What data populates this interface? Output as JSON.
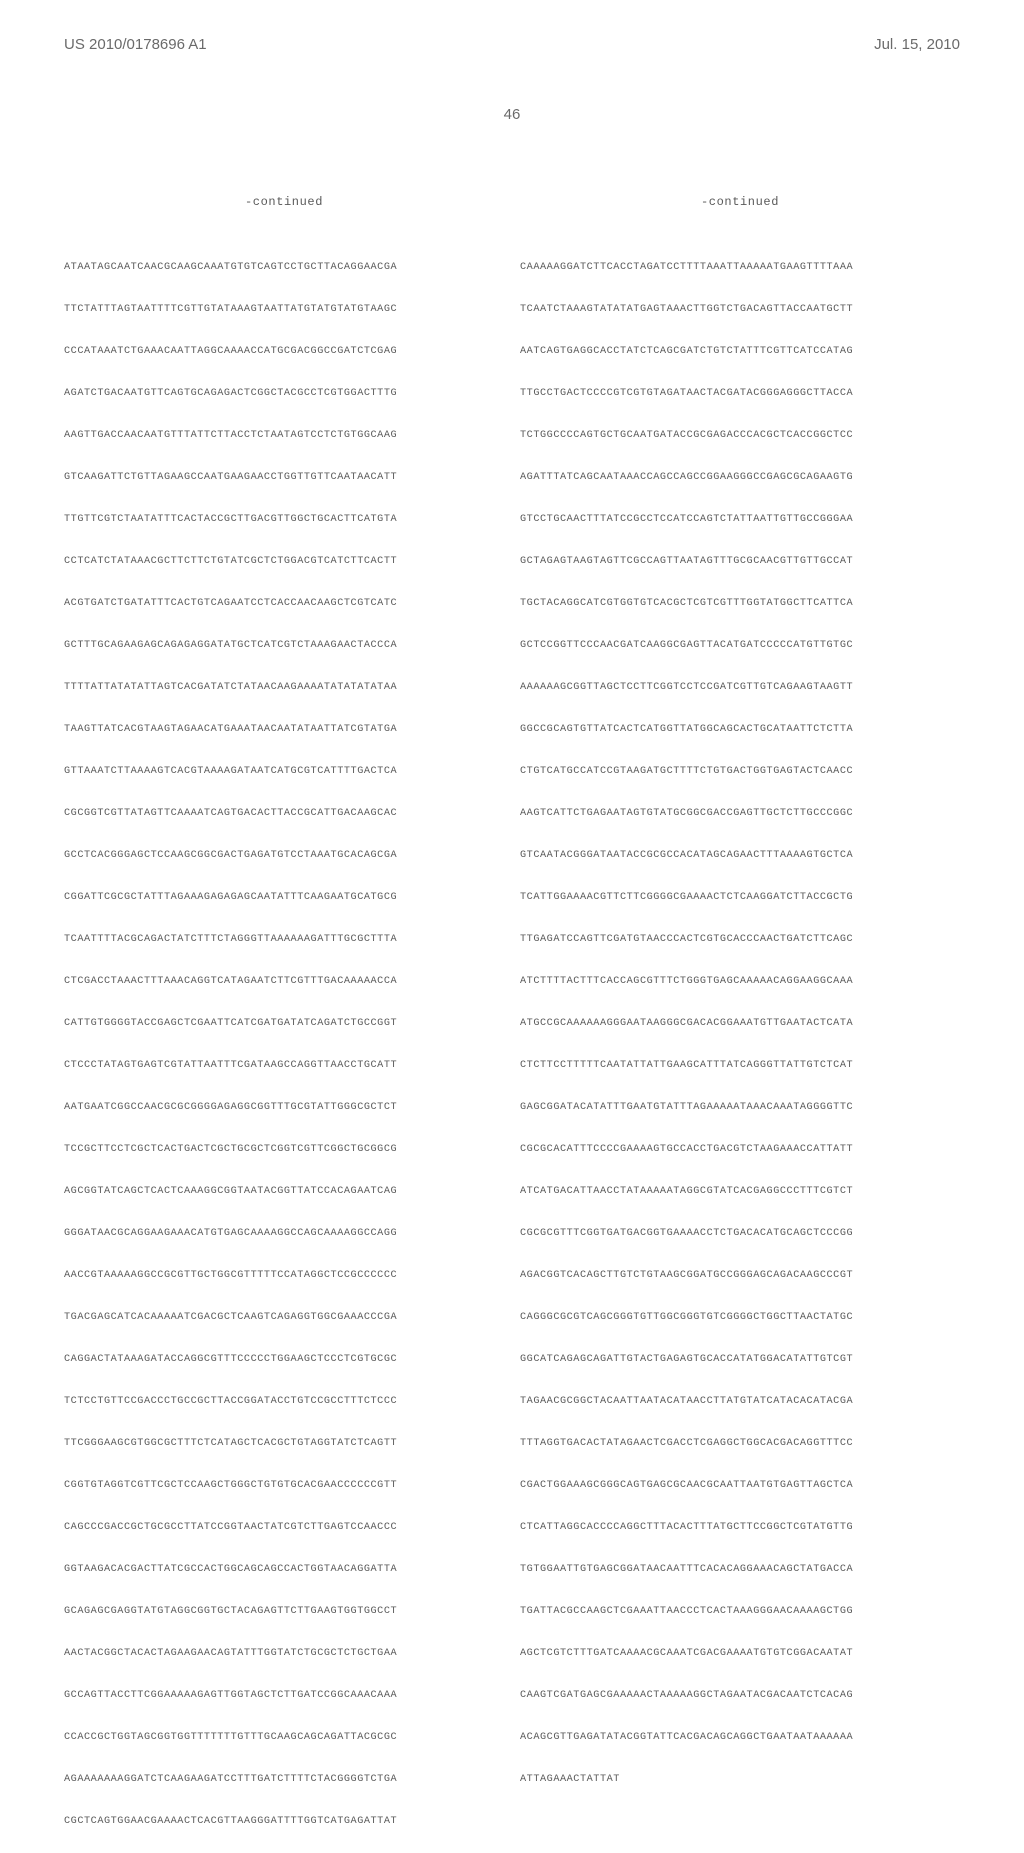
{
  "header": {
    "pub_number": "US 2010/0178696 A1",
    "pub_date": "Jul. 15, 2010"
  },
  "page_number": "46",
  "continued_label": "-continued",
  "left_column": [
    "ATAATAGCAATCAACGCAAGCAAATGTGTCAGTCCTGCTTACAGGAACGA",
    "TTCTATTTAGTAATTTTCGTTGTATAAAGTAATTATGTATGTATGTAAGC",
    "CCCATAAATCTGAAACAATTAGGCAAAACCATGCGACGGCCGATCTCGAG",
    "AGATCTGACAATGTTCAGTGCAGAGACTCGGCTACGCCTCGTGGACTTTG",
    "AAGTTGACCAACAATGTTTATTCTTACCTCTAATAGTCCTCTGTGGCAAG",
    "GTCAAGATTCTGTTAGAAGCCAATGAAGAACCTGGTTGTTCAATAACATT",
    "TTGTTCGTCTAATATTTCACTACCGCTTGACGTTGGCTGCACTTCATGTA",
    "CCTCATCTATAAACGCTTCTTCTGTATCGCTCTGGACGTCATCTTCACTT",
    "ACGTGATCTGATATTTCACTGTCAGAATCCTCACCAACAAGCTCGTCATC",
    "GCTTTGCAGAAGAGCAGAGAGGATATGCTCATCGTCTAAAGAACTACCCA",
    "TTTTATTATATATTAGTCACGATATCTATAACAAGAAAATATATATATAA",
    "TAAGTTATCACGTAAGTAGAACATGAAATAACAATATAATTATCGTATGA",
    "GTTAAATCTTAAAAGTCACGTAAAAGATAATCATGCGTCATTTTGACTCA",
    "CGCGGTCGTTATAGTTCAAAATCAGTGACACTTACCGCATTGACAAGCAC",
    "GCCTCACGGGAGCTCCAAGCGGCGACTGAGATGTCCTAAATGCACAGCGA",
    "CGGATTCGCGCTATTTAGAAAGAGAGAGCAATATTTCAAGAATGCATGCG",
    "TCAATTTTACGCAGACTATCTTTCTAGGGTTAAAAAAGATTTGCGCTTTA",
    "CTCGACCTAAACTTTAAACAGGTCATAGAATCTTCGTTTGACAAAAACCA",
    "CATTGTGGGGTACCGAGCTCGAATTCATCGATGATATCAGATCTGCCGGT",
    "CTCCCTATAGTGAGTCGTATTAATTTCGATAAGCCAGGTTAACCTGCATT",
    "AATGAATCGGCCAACGCGCGGGGAGAGGCGGTTTGCGTATTGGGCGCTCT",
    "TCCGCTTCCTCGCTCACTGACTCGCTGCGCTCGGTCGTTCGGCTGCGGCG",
    "AGCGGTATCAGCTCACTCAAAGGCGGTAATACGGTTATCCACAGAATCAG",
    "GGGATAACGCAGGAAGAAACATGTGAGCAAAAGGCCAGCAAAAGGCCAGG",
    "AACCGTAAAAAGGCCGCGTTGCTGGCGTTTTTCCATAGGCTCCGCCCCCC",
    "TGACGAGCATCACAAAAATCGACGCTCAAGTCAGAGGTGGCGAAACCCGA",
    "CAGGACTATAAAGATACCAGGCGTTTCCCCCTGGAAGCTCCCTCGTGCGC",
    "TCTCCTGTTCCGACCCTGCCGCTTACCGGATACCTGTCCGCCTTTCTCCC",
    "TTCGGGAAGCGTGGCGCTTTCTCATAGCTCACGCTGTAGGTATCTCAGTT",
    "CGGTGTAGGTCGTTCGCTCCAAGCTGGGCTGTGTGCACGAACCCCCCGTT",
    "CAGCCCGACCGCTGCGCCTTATCCGGTAACTATCGTCTTGAGTCCAACCC",
    "GGTAAGACACGACTTATCGCCACTGGCAGCAGCCACTGGTAACAGGATTA",
    "GCAGAGCGAGGTATGTAGGCGGTGCTACAGAGTTCTTGAAGTGGTGGCCT",
    "AACTACGGCTACACTAGAAGAACAGTATTTGGTATCTGCGCTCTGCTGAA",
    "GCCAGTTACCTTCGGAAAAAGAGTTGGTAGCTCTTGATCCGGCAAACAAA",
    "CCACCGCTGGTAGCGGTGGTTTTTTTGTTTGCAAGCAGCAGATTACGCGC",
    "AGAAAAAAAGGATCTCAAGAAGATCCTTTGATCTTTTCTACGGGGTCTGA",
    "CGCTCAGTGGAACGAAAACTCACGTTAAGGGATTTTGGTCATGAGATTAT"
  ],
  "right_column": [
    "CAAAAAGGATCTTCACCTAGATCCTTTTAAATTAAAAATGAAGTTTTAAA",
    "TCAATCTAAAGTATATATGAGTAAACTTGGTCTGACAGTTACCAATGCTT",
    "AATCAGTGAGGCACCTATCTCAGCGATCTGTCTATTTCGTTCATCCATAG",
    "TTGCCTGACTCCCCGTCGTGTAGATAACTACGATACGGGAGGGCTTACCA",
    "TCTGGCCCCAGTGCTGCAATGATACCGCGAGACCCACGCTCACCGGCTCC",
    "AGATTTATCAGCAATAAACCAGCCAGCCGGAAGGGCCGAGCGCAGAAGTG",
    "GTCCTGCAACTTTATCCGCCTCCATCCAGTCTATTAATTGTTGCCGGGAA",
    "GCTAGAGTAAGTAGTTCGCCAGTTAATAGTTTGCGCAACGTTGTTGCCAT",
    "TGCTACAGGCATCGTGGTGTCACGCTCGTCGTTTGGTATGGCTTCATTCA",
    "GCTCCGGTTCCCAACGATCAAGGCGAGTTACATGATCCCCCATGTTGTGC",
    "AAAAAAGCGGTTAGCTCCTTCGGTCCTCCGATCGTTGTCAGAAGTAAGTT",
    "GGCCGCAGTGTTATCACTCATGGTTATGGCAGCACTGCATAATTCTCTTA",
    "CTGTCATGCCATCCGTAAGATGCTTTTCTGTGACTGGTGAGTACTCAACC",
    "AAGTCATTCTGAGAATAGTGTATGCGGCGACCGAGTTGCTCTTGCCCGGC",
    "GTCAATACGGGATAATACCGCGCCACATAGCAGAACTTTAAAAGTGCTCA",
    "TCATTGGAAAACGTTCTTCGGGGCGAAAACTCTCAAGGATCTTACCGCTG",
    "TTGAGATCCAGTTCGATGTAACCCACTCGTGCACCCAACTGATCTTCAGC",
    "ATCTTTTACTTTCACCAGCGTTTCTGGGTGAGCAAAAACAGGAAGGCAAA",
    "ATGCCGCAAAAAAGGGAATAAGGGCGACACGGAAATGTTGAATACTCATA",
    "CTCTTCCTTTTTCAATATTATTGAAGCATTTATCAGGGTTATTGTCTCAT",
    "GAGCGGATACATATTTGAATGTATTTAGAAAAATAAACAAATAGGGGTTC",
    "CGCGCACATTTCCCCGAAAAGTGCCACCTGACGTCTAAGAAACCATTATT",
    "ATCATGACATTAACCTATAAAAATAGGCGTATCACGAGGCCCTTTCGTCT",
    "CGCGCGTTTCGGTGATGACGGTGAAAACCTCTGACACATGCAGCTCCCGG",
    "AGACGGTCACAGCTTGTCTGTAAGCGGATGCCGGGAGCAGACAAGCCCGT",
    "CAGGGCGCGTCAGCGGGTGTTGGCGGGTGTCGGGGCTGGCTTAACTATGC",
    "GGCATCAGAGCAGATTGTACTGAGAGTGCACCATATGGACATATTGTCGT",
    "TAGAACGCGGCTACAATTAATACATAACCTTATGTATCATACACATACGA",
    "TTTAGGTGACACTATAGAACTCGACCTCGAGGCTGGCACGACAGGTTTCC",
    "CGACTGGAAAGCGGGCAGTGAGCGCAACGCAATTAATGTGAGTTAGCTCA",
    "CTCATTAGGCACCCCAGGCTTTACACTTTATGCTTCCGGCTCGTATGTTG",
    "TGTGGAATTGTGAGCGGATAACAATTTCACACAGGAAACAGCTATGACCA",
    "TGATTACGCCAAGCTCGAAATTAACCCTCACTAAAGGGAACAAAAGCTGG",
    "AGCTCGTCTTTGATCAAAACGCAAATCGACGAAAATGTGTCGGACAATAT",
    "CAAGTCGATGAGCGAAAAACTAAAAAGGCTAGAATACGACAATCTCACAG",
    "ACAGCGTTGAGATATACGGTATTCACGACAGCAGGCTGAATAATAAAAAA",
    "ATTAGAAACTATTAT"
  ]
}
